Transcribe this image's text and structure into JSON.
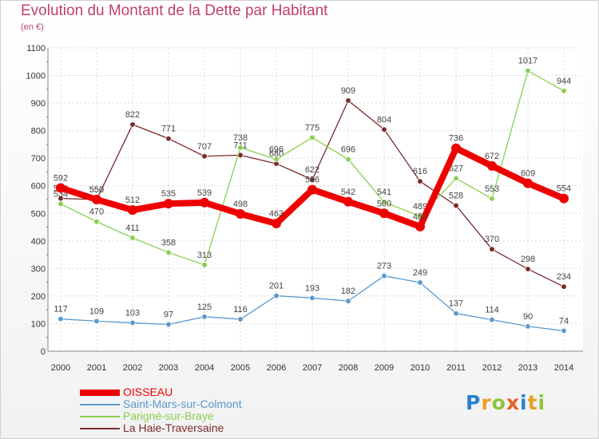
{
  "title": "Evolution du Montant de la Dette par Habitant",
  "unit_label": "(en €)",
  "brand": {
    "letters": [
      "P",
      "r",
      "o",
      "x",
      "i",
      "t",
      "i"
    ],
    "colors": [
      "#2b7fd0",
      "#e8a020",
      "#8cc43c",
      "#e86020",
      "#2b7fd0",
      "#e8a020",
      "#8cc43c"
    ]
  },
  "chart_data": {
    "type": "line",
    "x": [
      "2000",
      "2001",
      "2002",
      "2003",
      "2004",
      "2005",
      "2006",
      "2007",
      "2008",
      "2009",
      "2010",
      "2011",
      "2012",
      "2013",
      "2014"
    ],
    "ylim": [
      0,
      1100
    ],
    "yticks": [
      "0",
      "100",
      "200",
      "300",
      "400",
      "500",
      "600",
      "700",
      "800",
      "900",
      "1000",
      "1100"
    ],
    "grid": true,
    "legend": "bottom-left",
    "series": [
      {
        "name": "La Haie-Traversaine",
        "color": "#7a2a2a",
        "values": [
          554,
          550,
          822,
          771,
          707,
          711,
          680,
          622,
          909,
          804,
          616,
          528,
          370,
          298,
          234
        ],
        "labels": [
          "554",
          "550",
          "822",
          "771",
          "707",
          "711",
          "680",
          "622",
          "909",
          "804",
          "616",
          "528",
          "370",
          "298",
          "234"
        ]
      },
      {
        "name": "Parigné-sur-Braye",
        "color": "#88d050",
        "values": [
          534,
          470,
          411,
          358,
          313,
          738,
          696,
          775,
          696,
          541,
          489,
          627,
          553,
          1017,
          944
        ],
        "labels": [
          "534",
          "470",
          "411",
          "358",
          "313",
          "738",
          "696",
          "775",
          "696",
          "541",
          "489",
          "627",
          "553",
          "1017",
          "944"
        ]
      },
      {
        "name": "Saint-Mars-sur-Colmont",
        "color": "#5a9ad0",
        "values": [
          117,
          109,
          103,
          97,
          125,
          116,
          201,
          193,
          182,
          273,
          249,
          137,
          114,
          90,
          74
        ],
        "labels": [
          "117",
          "109",
          "103",
          "97",
          "125",
          "116",
          "201",
          "193",
          "182",
          "273",
          "249",
          "137",
          "114",
          "90",
          "74"
        ]
      },
      {
        "name": "OISSEAU",
        "color": "#ee0000",
        "values": [
          592,
          550,
          512,
          535,
          539,
          498,
          463,
          586,
          542,
          500,
          452,
          736,
          672,
          609,
          554
        ],
        "labels": [
          "592",
          "550",
          "512",
          "535",
          "539",
          "498",
          "463",
          "586",
          "542",
          "500",
          "452",
          "736",
          "672",
          "609",
          "554"
        ]
      }
    ],
    "legend_order": [
      "OISSEAU",
      "Saint-Mars-sur-Colmont",
      "Parigné-sur-Braye",
      "La Haie-Traversaine"
    ]
  }
}
